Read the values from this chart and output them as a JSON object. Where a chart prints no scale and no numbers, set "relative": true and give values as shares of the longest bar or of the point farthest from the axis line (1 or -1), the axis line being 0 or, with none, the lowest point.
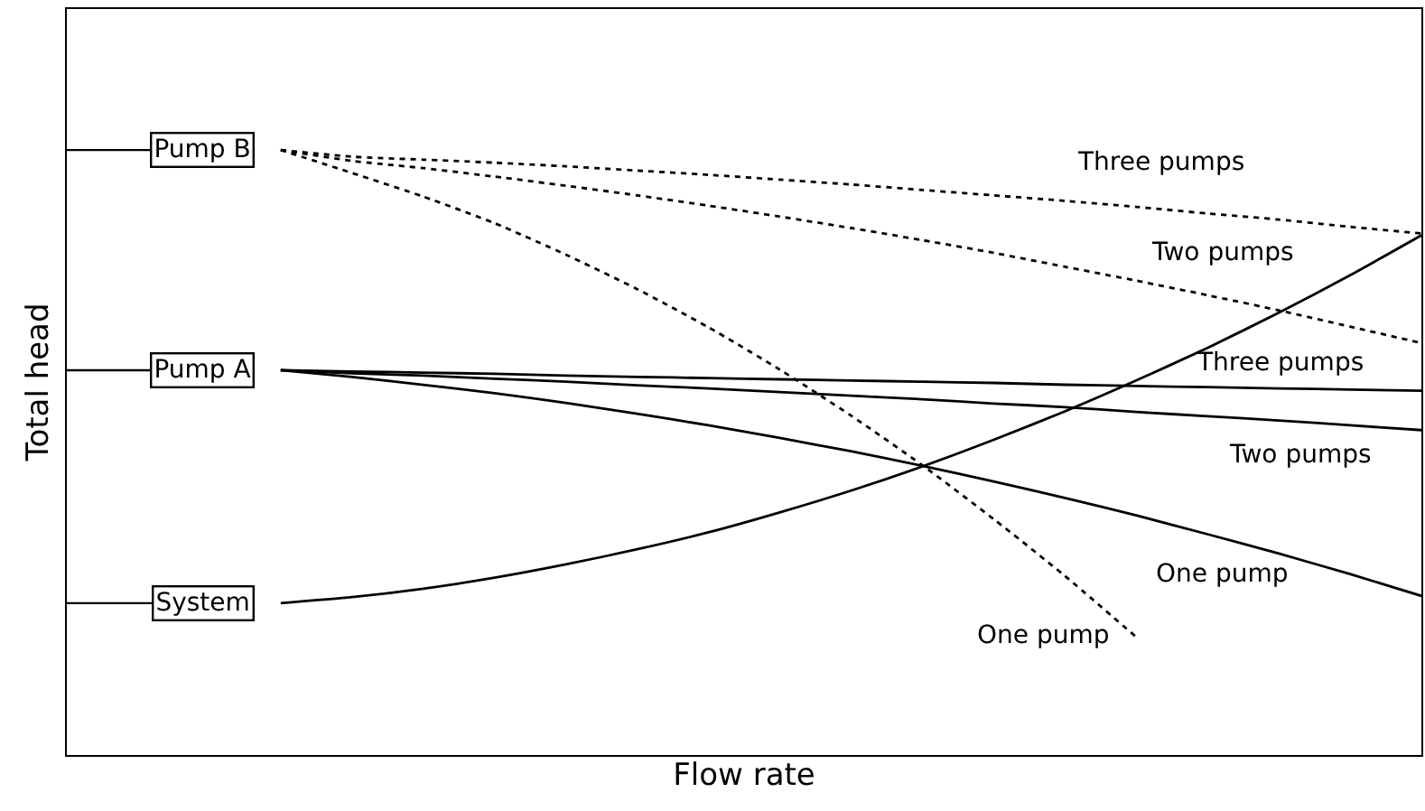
{
  "chart_data": {
    "type": "line",
    "relative": true,
    "xlabel": "Flow rate",
    "ylabel": "Total head",
    "legend": false,
    "marker": "none",
    "categories": [
      null,
      null,
      null,
      null,
      null,
      null,
      null,
      null,
      null,
      null,
      null,
      null,
      null,
      null,
      null,
      null,
      null,
      null,
      null,
      null
    ],
    "series": [
      {
        "name": "One pump",
        "color": "#000000",
        "line_style": "solid",
        "values": [
          null,
          null,
          null,
          0.636,
          0.625,
          0.612,
          0.598,
          0.582,
          0.564,
          0.545,
          0.524,
          0.502,
          0.478,
          0.452,
          0.425,
          0.396,
          0.365,
          0.333,
          0.299,
          0.263
        ]
      },
      {
        "name": "Two pumps",
        "color": "#000000",
        "line_style": "solid",
        "values": [
          null,
          null,
          null,
          0.636,
          0.631,
          0.627,
          0.622,
          0.617,
          0.611,
          0.606,
          0.6,
          0.594,
          0.588,
          0.581,
          0.575,
          0.567,
          0.56,
          0.553,
          0.545,
          0.537
        ]
      },
      {
        "name": "Three pumps",
        "color": "#000000",
        "line_style": "solid",
        "values": [
          null,
          null,
          null,
          0.636,
          0.634,
          0.632,
          0.63,
          0.627,
          0.625,
          0.623,
          0.621,
          0.619,
          0.617,
          0.615,
          0.612,
          0.61,
          0.608,
          0.606,
          0.604,
          0.602
        ]
      },
      {
        "name": "One pump",
        "color": "#000000",
        "line_style": "dotted",
        "values": [
          null,
          null,
          null,
          1.0,
          0.962,
          0.923,
          0.879,
          0.827,
          0.77,
          0.707,
          0.637,
          0.561,
          0.479,
          0.39,
          0.296,
          0.195,
          null,
          null,
          null,
          null
        ]
      },
      {
        "name": "Two pumps",
        "color": "#000000",
        "line_style": "dotted",
        "values": [
          null,
          null,
          null,
          1.0,
          0.982,
          0.97,
          0.956,
          0.941,
          0.925,
          0.908,
          0.89,
          0.871,
          0.851,
          0.83,
          0.807,
          0.784,
          0.76,
          0.735,
          0.708,
          0.681
        ]
      },
      {
        "name": "Three pumps",
        "color": "#000000",
        "line_style": "dotted",
        "values": [
          null,
          null,
          null,
          1.0,
          0.989,
          0.984,
          0.979,
          0.973,
          0.966,
          0.959,
          0.951,
          0.943,
          0.934,
          0.925,
          0.916,
          0.906,
          0.895,
          0.885,
          0.873,
          0.862
        ]
      },
      {
        "color": "#000000",
        "line_style": "solid",
        "values": [
          null,
          null,
          null,
          0.251,
          0.261,
          0.275,
          0.293,
          0.315,
          0.34,
          0.368,
          0.401,
          0.437,
          0.477,
          0.521,
          0.568,
          0.619,
          0.673,
          0.731,
          0.793,
          0.859
        ]
      }
    ],
    "annotations": [
      "Pump B",
      "Pump A",
      "System"
    ]
  }
}
